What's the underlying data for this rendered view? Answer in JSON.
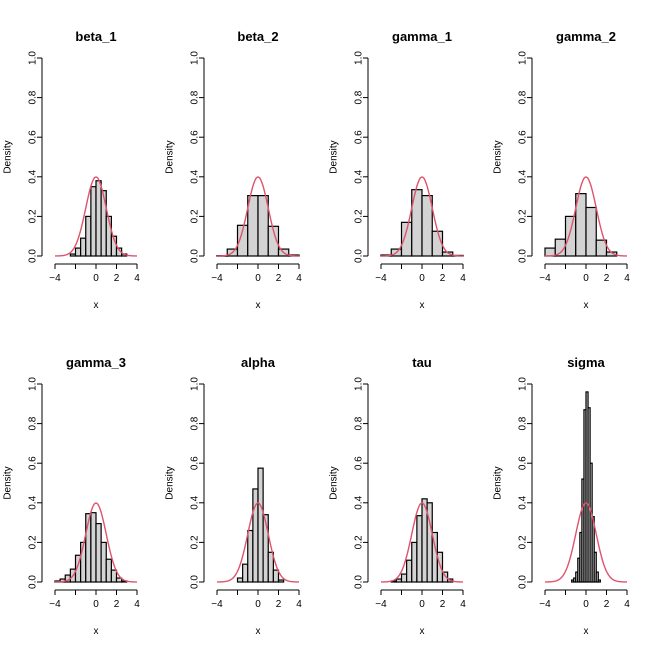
{
  "chart_data": [
    {
      "type": "histogram",
      "title": "beta_1",
      "xlabel": "x",
      "ylabel": "Density",
      "xlim": [
        -4,
        4
      ],
      "ylim": [
        0,
        1
      ],
      "xticks": [
        -4,
        -2,
        0,
        2,
        4
      ],
      "yticks": [
        0,
        0.2,
        0.4,
        0.6,
        0.8,
        1
      ],
      "x_tick_labels": [
        "−4",
        "",
        "0",
        "2",
        "4"
      ],
      "y_tick_labels": [
        "0.0",
        "0.2",
        "0.4",
        "0.6",
        "0.8",
        "1.0"
      ],
      "bins": [
        [
          -2.5,
          -2.0,
          0.01
        ],
        [
          -2.0,
          -1.5,
          0.04
        ],
        [
          -1.5,
          -1.0,
          0.09
        ],
        [
          -1.0,
          -0.5,
          0.2
        ],
        [
          -0.5,
          0.0,
          0.35
        ],
        [
          0.0,
          0.5,
          0.38
        ],
        [
          0.5,
          1.0,
          0.33
        ],
        [
          1.0,
          1.5,
          0.2
        ],
        [
          1.5,
          2.0,
          0.1
        ],
        [
          2.0,
          2.5,
          0.04
        ],
        [
          2.5,
          3.0,
          0.01
        ]
      ],
      "overlay": {
        "name": "normal density",
        "color": "#df536b",
        "mean": 0,
        "sd": 1
      }
    },
    {
      "type": "histogram",
      "title": "beta_2",
      "xlabel": "x",
      "ylabel": "Density",
      "xlim": [
        -4,
        4
      ],
      "ylim": [
        0,
        1
      ],
      "xticks": [
        -4,
        -2,
        0,
        2,
        4
      ],
      "yticks": [
        0,
        0.2,
        0.4,
        0.6,
        0.8,
        1
      ],
      "x_tick_labels": [
        "−4",
        "",
        "0",
        "2",
        "4"
      ],
      "y_tick_labels": [
        "0.0",
        "0.2",
        "0.4",
        "0.6",
        "0.8",
        "1.0"
      ],
      "bins": [
        [
          -4,
          -3,
          0.002
        ],
        [
          -3,
          -2,
          0.035
        ],
        [
          -2,
          -1,
          0.155
        ],
        [
          -1,
          0,
          0.305
        ],
        [
          0,
          1,
          0.305
        ],
        [
          1,
          2,
          0.15
        ],
        [
          2,
          3,
          0.035
        ],
        [
          3,
          4,
          0.005
        ]
      ],
      "overlay": {
        "name": "normal density",
        "color": "#df536b",
        "mean": 0,
        "sd": 1
      }
    },
    {
      "type": "histogram",
      "title": "gamma_1",
      "xlabel": "x",
      "ylabel": "Density",
      "xlim": [
        -4,
        4
      ],
      "ylim": [
        0,
        1
      ],
      "xticks": [
        -4,
        -2,
        0,
        2,
        4
      ],
      "yticks": [
        0,
        0.2,
        0.4,
        0.6,
        0.8,
        1
      ],
      "x_tick_labels": [
        "−4",
        "",
        "0",
        "2",
        "4"
      ],
      "y_tick_labels": [
        "0.0",
        "0.2",
        "0.4",
        "0.6",
        "0.8",
        "1.0"
      ],
      "bins": [
        [
          -4,
          -3,
          0.005
        ],
        [
          -3,
          -2,
          0.035
        ],
        [
          -2,
          -1,
          0.17
        ],
        [
          -1,
          0,
          0.335
        ],
        [
          0,
          1,
          0.305
        ],
        [
          1,
          2,
          0.125
        ],
        [
          2,
          3,
          0.02
        ],
        [
          3,
          4,
          0.003
        ]
      ],
      "overlay": {
        "name": "normal density",
        "color": "#df536b",
        "mean": 0,
        "sd": 1
      }
    },
    {
      "type": "histogram",
      "title": "gamma_2",
      "xlabel": "x",
      "ylabel": "Density",
      "xlim": [
        -4,
        4
      ],
      "ylim": [
        0,
        1
      ],
      "xticks": [
        -4,
        -2,
        0,
        2,
        4
      ],
      "yticks": [
        0,
        0.2,
        0.4,
        0.6,
        0.8,
        1
      ],
      "x_tick_labels": [
        "−4",
        "",
        "0",
        "2",
        "4"
      ],
      "y_tick_labels": [
        "0.0",
        "0.2",
        "0.4",
        "0.6",
        "0.8",
        "1.0"
      ],
      "bins": [
        [
          -4,
          -3,
          0.04
        ],
        [
          -3,
          -2,
          0.085
        ],
        [
          -2,
          -1,
          0.2
        ],
        [
          -1,
          0,
          0.315
        ],
        [
          0,
          1,
          0.245
        ],
        [
          1,
          2,
          0.08
        ],
        [
          2,
          3,
          0.02
        ]
      ],
      "overlay": {
        "name": "normal density",
        "color": "#df536b",
        "mean": 0,
        "sd": 1
      }
    },
    {
      "type": "histogram",
      "title": "gamma_3",
      "xlabel": "x",
      "ylabel": "Density",
      "xlim": [
        -4,
        4
      ],
      "ylim": [
        0,
        1
      ],
      "xticks": [
        -4,
        -2,
        0,
        2,
        4
      ],
      "yticks": [
        0,
        0.2,
        0.4,
        0.6,
        0.8,
        1
      ],
      "x_tick_labels": [
        "−4",
        "",
        "0",
        "2",
        "4"
      ],
      "y_tick_labels": [
        "0.0",
        "0.2",
        "0.4",
        "0.6",
        "0.8",
        "1.0"
      ],
      "bins": [
        [
          -4.0,
          -3.5,
          0.005
        ],
        [
          -3.5,
          -3.0,
          0.015
        ],
        [
          -3.0,
          -2.5,
          0.035
        ],
        [
          -2.5,
          -2.0,
          0.065
        ],
        [
          -2.0,
          -1.5,
          0.135
        ],
        [
          -1.5,
          -1.0,
          0.2
        ],
        [
          -1.0,
          -0.5,
          0.345
        ],
        [
          -0.5,
          0.0,
          0.35
        ],
        [
          0.0,
          0.5,
          0.295
        ],
        [
          0.5,
          1.0,
          0.2
        ],
        [
          1.0,
          1.5,
          0.115
        ],
        [
          1.5,
          2.0,
          0.06
        ],
        [
          2.0,
          2.5,
          0.02
        ],
        [
          2.5,
          3.0,
          0.005
        ]
      ],
      "overlay": {
        "name": "normal density",
        "color": "#df536b",
        "mean": 0,
        "sd": 1
      }
    },
    {
      "type": "histogram",
      "title": "alpha",
      "xlabel": "x",
      "ylabel": "Density",
      "xlim": [
        -4,
        4
      ],
      "ylim": [
        0,
        1
      ],
      "xticks": [
        -4,
        -2,
        0,
        2,
        4
      ],
      "yticks": [
        0,
        0.2,
        0.4,
        0.6,
        0.8,
        1
      ],
      "x_tick_labels": [
        "−4",
        "",
        "0",
        "2",
        "4"
      ],
      "y_tick_labels": [
        "0.0",
        "0.2",
        "0.4",
        "0.6",
        "0.8",
        "1.0"
      ],
      "bins": [
        [
          -2.0,
          -1.5,
          0.02
        ],
        [
          -1.5,
          -1.0,
          0.09
        ],
        [
          -1.0,
          -0.5,
          0.26
        ],
        [
          -0.5,
          0.0,
          0.47
        ],
        [
          0.0,
          0.5,
          0.575
        ],
        [
          0.5,
          1.0,
          0.34
        ],
        [
          1.0,
          1.5,
          0.15
        ],
        [
          1.5,
          2.0,
          0.06
        ],
        [
          2.0,
          2.5,
          0.01
        ]
      ],
      "overlay": {
        "name": "normal density",
        "color": "#df536b",
        "mean": 0,
        "sd": 1
      }
    },
    {
      "type": "histogram",
      "title": "tau",
      "xlabel": "x",
      "ylabel": "Density",
      "xlim": [
        -4,
        4
      ],
      "ylim": [
        0,
        1
      ],
      "xticks": [
        -4,
        -2,
        0,
        2,
        4
      ],
      "yticks": [
        0,
        0.2,
        0.4,
        0.6,
        0.8,
        1
      ],
      "x_tick_labels": [
        "−4",
        "",
        "0",
        "2",
        "4"
      ],
      "y_tick_labels": [
        "0.0",
        "0.2",
        "0.4",
        "0.6",
        "0.8",
        "1.0"
      ],
      "bins": [
        [
          -3.0,
          -2.5,
          0.005
        ],
        [
          -2.5,
          -2.0,
          0.015
        ],
        [
          -2.0,
          -1.5,
          0.04
        ],
        [
          -1.5,
          -1.0,
          0.11
        ],
        [
          -1.0,
          -0.5,
          0.2
        ],
        [
          -0.5,
          0.0,
          0.335
        ],
        [
          0.0,
          0.5,
          0.42
        ],
        [
          0.5,
          1.0,
          0.4
        ],
        [
          1.0,
          1.5,
          0.25
        ],
        [
          1.5,
          2.0,
          0.15
        ],
        [
          2.0,
          2.5,
          0.05
        ],
        [
          2.5,
          3.0,
          0.015
        ]
      ],
      "overlay": {
        "name": "normal density",
        "color": "#df536b",
        "mean": 0,
        "sd": 1
      }
    },
    {
      "type": "histogram",
      "title": "sigma",
      "xlabel": "x",
      "ylabel": "Density",
      "xlim": [
        -4,
        4
      ],
      "ylim": [
        0,
        1
      ],
      "xticks": [
        -4,
        -2,
        0,
        2,
        4
      ],
      "yticks": [
        0,
        0.2,
        0.4,
        0.6,
        0.8,
        1
      ],
      "x_tick_labels": [
        "−4",
        "",
        "0",
        "2",
        "4"
      ],
      "y_tick_labels": [
        "0.0",
        "0.2",
        "0.4",
        "0.6",
        "0.8",
        "1.0"
      ],
      "bins": [
        [
          -1.4,
          -1.2,
          0.01
        ],
        [
          -1.2,
          -1.0,
          0.02
        ],
        [
          -1.0,
          -0.8,
          0.05
        ],
        [
          -0.8,
          -0.6,
          0.12
        ],
        [
          -0.6,
          -0.4,
          0.25
        ],
        [
          -0.4,
          -0.2,
          0.52
        ],
        [
          -0.2,
          0.0,
          0.87
        ],
        [
          0.0,
          0.2,
          0.96
        ],
        [
          0.2,
          0.4,
          0.88
        ],
        [
          0.4,
          0.6,
          0.6
        ],
        [
          0.6,
          0.8,
          0.33
        ],
        [
          0.8,
          1.0,
          0.15
        ],
        [
          1.0,
          1.2,
          0.05
        ],
        [
          1.2,
          1.4,
          0.01
        ]
      ],
      "overlay": {
        "name": "normal density",
        "color": "#df536b",
        "mean": 0,
        "sd": 1
      }
    }
  ]
}
